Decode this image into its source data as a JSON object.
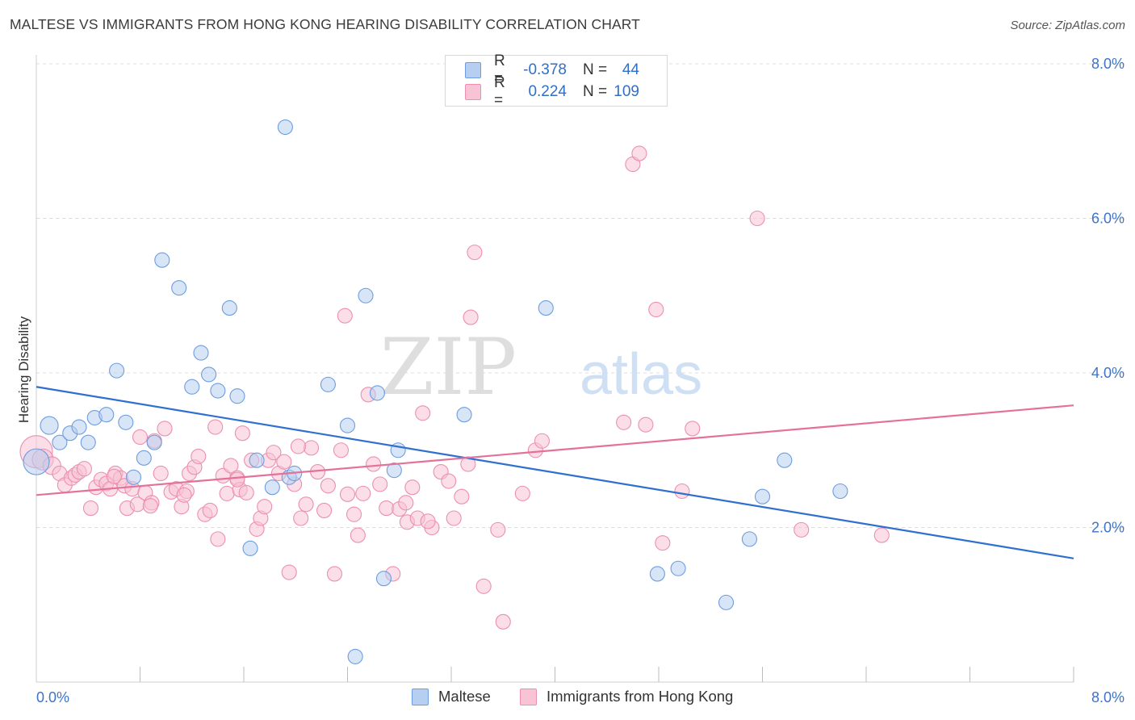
{
  "header": {
    "title": "MALTESE VS IMMIGRANTS FROM HONG KONG HEARING DISABILITY CORRELATION CHART",
    "source": "Source: ZipAtlas.com"
  },
  "legend": {
    "rows": [
      {
        "r_label": "R =",
        "r_value": "-0.378",
        "n_label": "N =",
        "n_value": "44"
      },
      {
        "r_label": "R =",
        "r_value": "0.224",
        "n_label": "N =",
        "n_value": "109"
      }
    ]
  },
  "bottom_legend": {
    "series1": "Maltese",
    "series2": "Immigrants from Hong Kong"
  },
  "watermark": {
    "zip": "ZIP",
    "atlas": "atlas"
  },
  "colors": {
    "blue_fill": "#b6cff0",
    "blue_stroke": "#6d9de0",
    "blue_line": "#2f6fd0",
    "pink_fill": "#f8c3d4",
    "pink_stroke": "#ec8fb0",
    "pink_line": "#e4719a",
    "tick_label": "#3f73c9"
  },
  "chart_data": {
    "type": "scatter",
    "title": "MALTESE VS IMMIGRANTS FROM HONG KONG HEARING DISABILITY CORRELATION CHART",
    "xlabel": "",
    "ylabel": "Hearing Disability",
    "xlim": [
      0,
      8
    ],
    "ylim": [
      0,
      8
    ],
    "x_tick_labels": [
      "0.0%",
      "8.0%"
    ],
    "y_ticks": [
      {
        "value": 2,
        "label": "2.0%"
      },
      {
        "value": 4,
        "label": "4.0%"
      },
      {
        "value": 6,
        "label": "6.0%"
      },
      {
        "value": 8,
        "label": "8.0%"
      }
    ],
    "grid": "horizontal dashed",
    "legend_position": "top-center",
    "series": [
      {
        "name": "Maltese",
        "r": -0.378,
        "n": 44,
        "trend": {
          "x": [
            0,
            8
          ],
          "y": [
            3.82,
            1.6
          ]
        },
        "points": [
          [
            0.0,
            2.85,
            16
          ],
          [
            0.1,
            3.32,
            11
          ],
          [
            0.18,
            3.1,
            9
          ],
          [
            0.26,
            3.22,
            9
          ],
          [
            0.33,
            3.3,
            9
          ],
          [
            0.4,
            3.1,
            9
          ],
          [
            0.45,
            3.42,
            9
          ],
          [
            0.54,
            3.46,
            9
          ],
          [
            0.62,
            4.03,
            9
          ],
          [
            0.69,
            3.36,
            9
          ],
          [
            0.75,
            2.65,
            9
          ],
          [
            0.83,
            2.9,
            9
          ],
          [
            0.91,
            3.1,
            9
          ],
          [
            0.97,
            5.46,
            9
          ],
          [
            1.1,
            5.1,
            9
          ],
          [
            1.2,
            3.82,
            9
          ],
          [
            1.27,
            4.26,
            9
          ],
          [
            1.33,
            3.98,
            9
          ],
          [
            1.4,
            3.77,
            9
          ],
          [
            1.49,
            4.84,
            9
          ],
          [
            1.55,
            3.7,
            9
          ],
          [
            1.65,
            1.73,
            9
          ],
          [
            1.7,
            2.87,
            9
          ],
          [
            1.82,
            2.52,
            9
          ],
          [
            1.92,
            7.18,
            9
          ],
          [
            1.95,
            2.65,
            9
          ],
          [
            1.99,
            2.7,
            9
          ],
          [
            2.25,
            3.85,
            9
          ],
          [
            2.4,
            3.32,
            9
          ],
          [
            2.46,
            0.33,
            9
          ],
          [
            2.54,
            5.0,
            9
          ],
          [
            2.63,
            3.74,
            9
          ],
          [
            2.68,
            1.34,
            9
          ],
          [
            2.76,
            2.74,
            9
          ],
          [
            2.79,
            3.0,
            9
          ],
          [
            3.3,
            3.46,
            9
          ],
          [
            3.93,
            4.84,
            9
          ],
          [
            4.79,
            1.4,
            9
          ],
          [
            4.95,
            1.47,
            9
          ],
          [
            5.32,
            1.03,
            9
          ],
          [
            5.5,
            1.85,
            9
          ],
          [
            5.6,
            2.4,
            9
          ],
          [
            5.77,
            2.87,
            9
          ],
          [
            6.2,
            2.47,
            9
          ]
        ]
      },
      {
        "name": "Immigrants from Hong Kong",
        "r": 0.224,
        "n": 109,
        "trend": {
          "x": [
            0,
            8
          ],
          "y": [
            2.42,
            3.58
          ]
        },
        "points": [
          [
            0.0,
            2.98,
            20
          ],
          [
            0.05,
            2.88,
            13
          ],
          [
            0.12,
            2.8,
            11
          ],
          [
            0.18,
            2.7,
            9
          ],
          [
            0.22,
            2.55,
            9
          ],
          [
            0.27,
            2.64,
            9
          ],
          [
            0.3,
            2.68,
            9
          ],
          [
            0.33,
            2.72,
            9
          ],
          [
            0.37,
            2.76,
            9
          ],
          [
            0.42,
            2.25,
            9
          ],
          [
            0.46,
            2.52,
            9
          ],
          [
            0.5,
            2.62,
            9
          ],
          [
            0.54,
            2.57,
            9
          ],
          [
            0.57,
            2.5,
            9
          ],
          [
            0.61,
            2.7,
            9
          ],
          [
            0.65,
            2.64,
            9
          ],
          [
            0.68,
            2.54,
            9
          ],
          [
            0.7,
            2.25,
            9
          ],
          [
            0.74,
            2.5,
            9
          ],
          [
            0.78,
            2.3,
            9
          ],
          [
            0.8,
            3.17,
            9
          ],
          [
            0.84,
            2.45,
            9
          ],
          [
            0.89,
            2.32,
            9
          ],
          [
            0.91,
            3.12,
            9
          ],
          [
            0.96,
            2.7,
            9
          ],
          [
            0.99,
            3.28,
            9
          ],
          [
            1.04,
            2.46,
            9
          ],
          [
            1.08,
            2.5,
            9
          ],
          [
            1.12,
            2.27,
            9
          ],
          [
            1.16,
            2.47,
            9
          ],
          [
            1.18,
            2.7,
            9
          ],
          [
            1.22,
            2.78,
            9
          ],
          [
            1.25,
            2.92,
            9
          ],
          [
            1.3,
            2.17,
            9
          ],
          [
            1.34,
            2.22,
            9
          ],
          [
            1.38,
            3.3,
            9
          ],
          [
            1.4,
            1.85,
            9
          ],
          [
            1.44,
            2.67,
            9
          ],
          [
            1.47,
            2.44,
            9
          ],
          [
            1.5,
            2.8,
            9
          ],
          [
            1.55,
            2.64,
            9
          ],
          [
            1.57,
            2.49,
            9
          ],
          [
            1.59,
            3.22,
            9
          ],
          [
            1.62,
            2.45,
            9
          ],
          [
            1.66,
            2.87,
            9
          ],
          [
            1.7,
            1.98,
            9
          ],
          [
            1.73,
            2.12,
            9
          ],
          [
            1.76,
            2.27,
            9
          ],
          [
            1.79,
            2.87,
            9
          ],
          [
            1.83,
            2.97,
            9
          ],
          [
            1.87,
            2.7,
            9
          ],
          [
            1.91,
            2.85,
            9
          ],
          [
            1.95,
            1.42,
            9
          ],
          [
            1.99,
            2.56,
            9
          ],
          [
            2.04,
            2.12,
            9
          ],
          [
            2.08,
            2.3,
            9
          ],
          [
            2.12,
            3.03,
            9
          ],
          [
            2.17,
            2.72,
            9
          ],
          [
            2.22,
            2.22,
            9
          ],
          [
            2.25,
            2.54,
            9
          ],
          [
            2.3,
            1.4,
            9
          ],
          [
            2.35,
            3.0,
            9
          ],
          [
            2.38,
            4.74,
            9
          ],
          [
            2.4,
            2.43,
            9
          ],
          [
            2.45,
            2.17,
            9
          ],
          [
            2.48,
            1.9,
            9
          ],
          [
            2.52,
            2.44,
            9
          ],
          [
            2.56,
            3.72,
            9
          ],
          [
            2.6,
            2.82,
            9
          ],
          [
            2.65,
            2.56,
            9
          ],
          [
            2.7,
            2.25,
            9
          ],
          [
            2.75,
            1.4,
            9
          ],
          [
            2.8,
            2.24,
            9
          ],
          [
            2.86,
            2.07,
            9
          ],
          [
            2.9,
            2.52,
            9
          ],
          [
            2.94,
            2.12,
            9
          ],
          [
            2.98,
            3.48,
            9
          ],
          [
            3.05,
            2.0,
            9
          ],
          [
            3.12,
            2.72,
            9
          ],
          [
            3.18,
            2.6,
            9
          ],
          [
            3.22,
            2.12,
            9
          ],
          [
            3.28,
            2.4,
            9
          ],
          [
            3.33,
            2.82,
            9
          ],
          [
            3.35,
            4.72,
            9
          ],
          [
            3.38,
            5.56,
            9
          ],
          [
            3.45,
            1.24,
            9
          ],
          [
            3.56,
            1.97,
            9
          ],
          [
            3.6,
            0.78,
            9
          ],
          [
            3.75,
            2.44,
            9
          ],
          [
            3.85,
            3.0,
            9
          ],
          [
            3.9,
            3.12,
            9
          ],
          [
            4.53,
            3.36,
            9
          ],
          [
            4.6,
            6.7,
            9
          ],
          [
            4.65,
            6.84,
            9
          ],
          [
            4.7,
            3.33,
            9
          ],
          [
            4.78,
            4.82,
            9
          ],
          [
            4.83,
            1.8,
            9
          ],
          [
            4.98,
            2.47,
            9
          ],
          [
            5.06,
            3.28,
            9
          ],
          [
            5.56,
            6.0,
            9
          ],
          [
            5.9,
            1.97,
            9
          ],
          [
            6.52,
            1.9,
            9
          ],
          [
            1.55,
            2.62,
            9
          ],
          [
            0.6,
            2.66,
            9
          ],
          [
            2.02,
            3.05,
            9
          ],
          [
            1.14,
            2.42,
            9
          ],
          [
            2.85,
            2.32,
            9
          ],
          [
            0.88,
            2.28,
            9
          ],
          [
            3.02,
            2.08,
            9
          ]
        ]
      }
    ]
  }
}
